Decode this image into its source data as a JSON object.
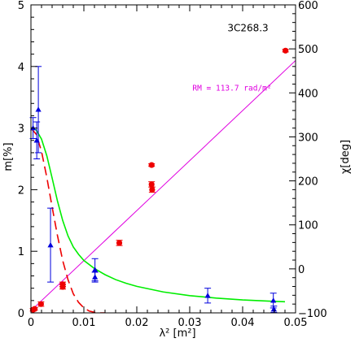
{
  "chart_data": {
    "type": "scatter",
    "xlabel": "λ² [m²]",
    "ylabel_left": "m[%]",
    "ylabel_right": "χ[deg]",
    "xlim": [
      0,
      0.05
    ],
    "ylim_left": [
      0,
      5
    ],
    "ylim_right": [
      -100,
      600
    ],
    "x_ticks": [
      "0",
      "0.01",
      "0.02",
      "0.03",
      "0.04",
      "0.05"
    ],
    "x_tick_values": [
      0,
      0.01,
      0.02,
      0.03,
      0.04,
      0.05
    ],
    "y_left_ticks": [
      "0",
      "1",
      "2",
      "3",
      "4",
      "5"
    ],
    "y_left_tick_values": [
      0,
      1,
      2,
      3,
      4,
      5
    ],
    "y_right_ticks": [
      "−100",
      "0",
      "100",
      "200",
      "300",
      "400",
      "500",
      "600"
    ],
    "y_right_tick_values": [
      -100,
      0,
      100,
      200,
      300,
      400,
      500,
      600
    ],
    "grid": false,
    "annotations": [
      {
        "text": "3C268.3",
        "x": 0.041,
        "y_right": 540
      },
      {
        "text": "RM = 113.7 rad/m²",
        "x": 0.038,
        "y_right": 405,
        "color": "#e000e0"
      }
    ],
    "colors": {
      "polarization": "#0000dd",
      "angle": "#ee0000",
      "fit_green": "#00ee00",
      "fit_red_dashed": "#ee0000",
      "rm_line": "#e000e0"
    },
    "series": [
      {
        "axis": "left",
        "marker": "triangle",
        "color": "#0000dd",
        "points": [
          {
            "x": 0.0004,
            "y": 3.0,
            "err": 0.17
          },
          {
            "x": 0.0011,
            "y": 2.8,
            "err": 0.3
          },
          {
            "x": 0.0014,
            "y": 3.3,
            "err": 0.7
          },
          {
            "x": 0.0037,
            "y": 1.1,
            "err": 0.6
          },
          {
            "x": 0.0121,
            "y": 0.7,
            "err": 0.18
          },
          {
            "x": 0.0121,
            "y": 0.58,
            "err": 0.08
          },
          {
            "x": 0.0334,
            "y": 0.28,
            "err": 0.12
          },
          {
            "x": 0.0458,
            "y": 0.2,
            "err": 0.12
          },
          {
            "x": 0.0459,
            "y": 0.06,
            "err": 0.05
          }
        ]
      },
      {
        "axis": "right",
        "marker": "circle",
        "color": "#ee0000",
        "points": [
          {
            "x": 0.0004,
            "y": -93,
            "err": 3
          },
          {
            "x": 0.0007,
            "y": -91,
            "err": 3
          },
          {
            "x": 0.0019,
            "y": -80,
            "err": 5
          },
          {
            "x": 0.006,
            "y": -35,
            "err": 5
          },
          {
            "x": 0.006,
            "y": -41,
            "err": 5
          },
          {
            "x": 0.0167,
            "y": 59,
            "err": 6
          },
          {
            "x": 0.0228,
            "y": 192,
            "err": 6
          },
          {
            "x": 0.0229,
            "y": 180,
            "err": 6
          },
          {
            "x": 0.0228,
            "y": 236,
            "err": 3
          },
          {
            "x": 0.0481,
            "y": 496,
            "err": 3
          }
        ]
      }
    ],
    "fits": [
      {
        "name": "",
        "axis": "right",
        "style": "solid",
        "color": "#e000e0",
        "x": [
          0,
          0.05
        ],
        "y": [
          -95,
          473.5
        ]
      },
      {
        "name": "",
        "axis": "left",
        "style": "solid",
        "color": "#00ee00",
        "x": [
          0,
          0.001,
          0.002,
          0.003,
          0.004,
          0.005,
          0.006,
          0.007,
          0.008,
          0.009,
          0.01,
          0.012,
          0.014,
          0.016,
          0.018,
          0.02,
          0.025,
          0.03,
          0.035,
          0.04,
          0.045,
          0.048
        ],
        "y": [
          3.0,
          2.97,
          2.82,
          2.55,
          2.19,
          1.82,
          1.5,
          1.25,
          1.07,
          0.95,
          0.85,
          0.72,
          0.62,
          0.54,
          0.48,
          0.43,
          0.34,
          0.28,
          0.24,
          0.21,
          0.19,
          0.18
        ]
      },
      {
        "name": "",
        "axis": "left",
        "style": "dashed",
        "color": "#ee0000",
        "x": [
          0,
          0.001,
          0.002,
          0.003,
          0.004,
          0.005,
          0.006,
          0.007,
          0.008,
          0.009,
          0.01,
          0.011,
          0.012,
          0.013,
          0.014
        ],
        "y": [
          3.0,
          2.9,
          2.62,
          2.2,
          1.72,
          1.26,
          0.85,
          0.54,
          0.31,
          0.17,
          0.08,
          0.03,
          0.01,
          0.0,
          0.0
        ]
      }
    ]
  }
}
